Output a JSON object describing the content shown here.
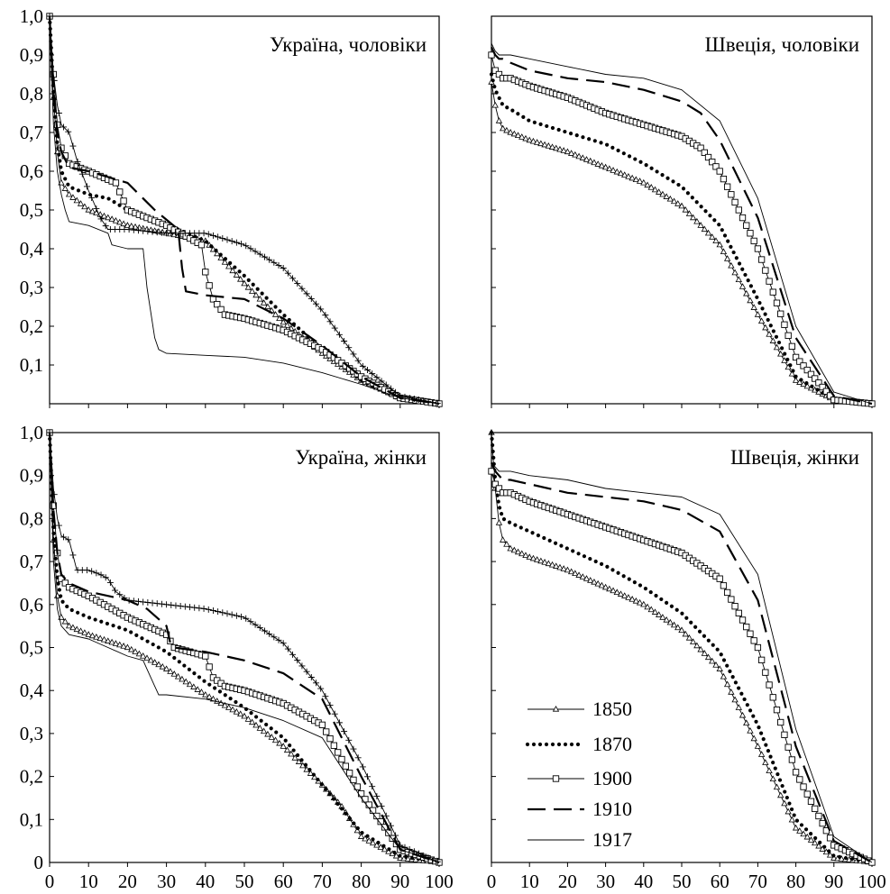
{
  "chart_data": [
    {
      "type": "line",
      "title": "Україна, чоловіки",
      "xlim": [
        0,
        100
      ],
      "ylim": [
        0,
        1
      ],
      "x_ticks": [],
      "y_ticks": [
        "0,1",
        "0,2",
        "0,3",
        "0,4",
        "0,5",
        "0,6",
        "0,7",
        "0,8",
        "0,9",
        "1,0"
      ],
      "y_tick_values": [
        0.1,
        0.2,
        0.3,
        0.4,
        0.5,
        0.6,
        0.7,
        0.8,
        0.9,
        1.0
      ],
      "grid": false,
      "series": [
        {
          "name": "1850",
          "x": [
            0,
            1,
            2,
            3,
            5,
            10,
            15,
            20,
            30,
            40,
            50,
            60,
            70,
            80,
            90,
            100
          ],
          "values": [
            1.0,
            0.79,
            0.65,
            0.57,
            0.54,
            0.5,
            0.48,
            0.46,
            0.44,
            0.42,
            0.31,
            0.21,
            0.13,
            0.06,
            0.015,
            0.0
          ]
        },
        {
          "name": "1870",
          "x": [
            0,
            1,
            2,
            3,
            5,
            10,
            15,
            20,
            30,
            33,
            40,
            50,
            60,
            70,
            80,
            90,
            100
          ],
          "values": [
            1.0,
            0.8,
            0.67,
            0.6,
            0.56,
            0.54,
            0.53,
            0.5,
            0.46,
            0.45,
            0.42,
            0.33,
            0.23,
            0.14,
            0.06,
            0.01,
            0.0
          ]
        },
        {
          "name": "1900",
          "x": [
            0,
            1,
            2,
            3,
            5,
            10,
            17,
            20,
            30,
            39,
            40,
            42,
            45,
            50,
            60,
            70,
            80,
            90,
            100
          ],
          "values": [
            1.0,
            0.85,
            0.72,
            0.66,
            0.62,
            0.6,
            0.57,
            0.5,
            0.46,
            0.41,
            0.34,
            0.27,
            0.23,
            0.22,
            0.19,
            0.14,
            0.07,
            0.015,
            0.0
          ]
        },
        {
          "name": "1910",
          "x": [
            0,
            1,
            2,
            3,
            5,
            10,
            20,
            22,
            27,
            33,
            34,
            35,
            40,
            50,
            60,
            70,
            80,
            90,
            100
          ],
          "values": [
            1.0,
            0.8,
            0.7,
            0.65,
            0.61,
            0.6,
            0.57,
            0.55,
            0.5,
            0.45,
            0.35,
            0.29,
            0.28,
            0.27,
            0.22,
            0.15,
            0.07,
            0.015,
            0.0
          ]
        },
        {
          "name": "1917",
          "x": [
            0,
            1,
            2,
            3,
            4,
            5,
            10,
            15,
            16,
            20,
            24,
            25,
            27,
            28,
            30,
            40,
            50,
            60,
            70,
            80,
            90,
            100
          ],
          "values": [
            1.0,
            0.72,
            0.6,
            0.54,
            0.5,
            0.47,
            0.46,
            0.44,
            0.41,
            0.4,
            0.4,
            0.3,
            0.17,
            0.14,
            0.13,
            0.125,
            0.12,
            0.105,
            0.08,
            0.05,
            0.015,
            0.0
          ]
        },
        {
          "name": "",
          "x": [
            0,
            1,
            2,
            3,
            5,
            7,
            10,
            13,
            15,
            17,
            20,
            30,
            40,
            50,
            60,
            70,
            80,
            90,
            100
          ],
          "values": [
            1.0,
            0.85,
            0.77,
            0.72,
            0.7,
            0.63,
            0.55,
            0.48,
            0.45,
            0.45,
            0.45,
            0.44,
            0.44,
            0.41,
            0.35,
            0.24,
            0.1,
            0.02,
            0.0
          ]
        }
      ]
    },
    {
      "type": "line",
      "title": "Швеція, чоловіки",
      "xlim": [
        0,
        100
      ],
      "ylim": [
        0,
        1
      ],
      "x_ticks": [],
      "y_ticks": [],
      "grid": false,
      "series": [
        {
          "name": "1850",
          "x": [
            0,
            1,
            2,
            3,
            5,
            10,
            20,
            30,
            40,
            50,
            60,
            70,
            80,
            90,
            100
          ],
          "values": [
            0.83,
            0.77,
            0.73,
            0.71,
            0.7,
            0.68,
            0.65,
            0.61,
            0.57,
            0.51,
            0.41,
            0.23,
            0.06,
            0.01,
            0.0
          ]
        },
        {
          "name": "1870",
          "x": [
            0,
            1,
            2,
            3,
            5,
            10,
            20,
            30,
            40,
            50,
            60,
            70,
            80,
            90,
            100
          ],
          "values": [
            0.85,
            0.81,
            0.79,
            0.77,
            0.76,
            0.73,
            0.7,
            0.67,
            0.62,
            0.56,
            0.46,
            0.27,
            0.07,
            0.01,
            0.0
          ]
        },
        {
          "name": "1900",
          "x": [
            0,
            1,
            2,
            3,
            5,
            10,
            20,
            30,
            40,
            50,
            55,
            60,
            70,
            80,
            90,
            100
          ],
          "values": [
            0.9,
            0.86,
            0.85,
            0.84,
            0.84,
            0.82,
            0.79,
            0.75,
            0.72,
            0.69,
            0.66,
            0.6,
            0.4,
            0.12,
            0.01,
            0.0
          ]
        },
        {
          "name": "1910",
          "x": [
            0,
            1,
            2,
            3,
            5,
            10,
            20,
            30,
            40,
            50,
            55,
            60,
            70,
            80,
            90,
            100
          ],
          "values": [
            0.92,
            0.9,
            0.89,
            0.89,
            0.88,
            0.86,
            0.84,
            0.83,
            0.81,
            0.78,
            0.75,
            0.68,
            0.48,
            0.17,
            0.02,
            0.0
          ]
        },
        {
          "name": "1917",
          "x": [
            0,
            1,
            2,
            3,
            5,
            10,
            20,
            30,
            40,
            50,
            60,
            70,
            80,
            90,
            100
          ],
          "values": [
            0.93,
            0.91,
            0.9,
            0.9,
            0.9,
            0.89,
            0.87,
            0.85,
            0.84,
            0.81,
            0.73,
            0.53,
            0.2,
            0.03,
            0.0
          ]
        }
      ]
    },
    {
      "type": "line",
      "title": "Україна, жінки",
      "xlim": [
        0,
        100
      ],
      "ylim": [
        0,
        1
      ],
      "x_ticks": [
        "0",
        "10",
        "20",
        "30",
        "40",
        "50",
        "60",
        "70",
        "80",
        "90",
        "100"
      ],
      "x_tick_values": [
        0,
        10,
        20,
        30,
        40,
        50,
        60,
        70,
        80,
        90,
        100
      ],
      "y_ticks": [
        "0",
        "0,1",
        "0,2",
        "0,3",
        "0,4",
        "0,5",
        "0,6",
        "0,7",
        "0,8",
        "0,9",
        "1,0"
      ],
      "y_tick_values": [
        0,
        0.1,
        0.2,
        0.3,
        0.4,
        0.5,
        0.6,
        0.7,
        0.8,
        0.9,
        1.0
      ],
      "grid": false,
      "series": [
        {
          "name": "1850",
          "x": [
            0,
            1,
            2,
            3,
            5,
            10,
            20,
            30,
            40,
            50,
            60,
            70,
            75,
            80,
            90,
            100
          ],
          "values": [
            1.0,
            0.75,
            0.62,
            0.57,
            0.55,
            0.53,
            0.5,
            0.45,
            0.39,
            0.34,
            0.27,
            0.18,
            0.13,
            0.06,
            0.01,
            0.0
          ]
        },
        {
          "name": "1870",
          "x": [
            0,
            1,
            2,
            3,
            5,
            10,
            20,
            30,
            40,
            50,
            60,
            70,
            80,
            90,
            100
          ],
          "values": [
            1.0,
            0.77,
            0.66,
            0.61,
            0.59,
            0.57,
            0.54,
            0.49,
            0.42,
            0.36,
            0.29,
            0.18,
            0.07,
            0.015,
            0.0
          ]
        },
        {
          "name": "1900",
          "x": [
            0,
            1,
            2,
            3,
            5,
            10,
            20,
            30,
            32,
            40,
            42,
            45,
            50,
            60,
            70,
            80,
            90,
            100
          ],
          "values": [
            1.0,
            0.83,
            0.72,
            0.66,
            0.64,
            0.62,
            0.57,
            0.53,
            0.5,
            0.48,
            0.43,
            0.41,
            0.4,
            0.37,
            0.32,
            0.16,
            0.03,
            0.0
          ]
        },
        {
          "name": "1910",
          "x": [
            0,
            1,
            2,
            3,
            5,
            10,
            20,
            25,
            30,
            31,
            32,
            40,
            50,
            60,
            70,
            80,
            90,
            100
          ],
          "values": [
            1.0,
            0.82,
            0.72,
            0.67,
            0.65,
            0.63,
            0.61,
            0.59,
            0.55,
            0.51,
            0.5,
            0.49,
            0.47,
            0.44,
            0.38,
            0.2,
            0.03,
            0.0
          ]
        },
        {
          "name": "1917",
          "x": [
            0,
            1,
            2,
            3,
            5,
            10,
            15,
            20,
            24,
            25,
            27,
            28,
            30,
            40,
            50,
            60,
            70,
            80,
            90,
            100
          ],
          "values": [
            1.0,
            0.7,
            0.59,
            0.55,
            0.53,
            0.52,
            0.5,
            0.48,
            0.47,
            0.45,
            0.41,
            0.39,
            0.39,
            0.38,
            0.36,
            0.33,
            0.29,
            0.15,
            0.03,
            0.0
          ]
        },
        {
          "name": "",
          "x": [
            0,
            1,
            2,
            3,
            5,
            7,
            10,
            13,
            15,
            17,
            20,
            30,
            40,
            50,
            60,
            70,
            80,
            90,
            100
          ],
          "values": [
            1.0,
            0.87,
            0.8,
            0.76,
            0.75,
            0.68,
            0.68,
            0.67,
            0.66,
            0.63,
            0.61,
            0.6,
            0.59,
            0.57,
            0.51,
            0.4,
            0.23,
            0.04,
            0.0
          ]
        }
      ]
    },
    {
      "type": "line",
      "title": "Швеція, жінки",
      "xlim": [
        0,
        100
      ],
      "ylim": [
        0,
        1
      ],
      "x_ticks": [
        "0",
        "10",
        "20",
        "30",
        "40",
        "50",
        "60",
        "70",
        "80",
        "90",
        "100"
      ],
      "x_tick_values": [
        0,
        10,
        20,
        30,
        40,
        50,
        60,
        70,
        80,
        90,
        100
      ],
      "y_ticks": [],
      "grid": false,
      "legend_position": "bottom-left",
      "series": [
        {
          "name": "1850",
          "x": [
            0,
            1,
            2,
            3,
            5,
            10,
            20,
            30,
            40,
            50,
            60,
            70,
            80,
            90,
            100
          ],
          "values": [
            1.0,
            0.87,
            0.79,
            0.75,
            0.73,
            0.71,
            0.68,
            0.64,
            0.6,
            0.54,
            0.45,
            0.27,
            0.08,
            0.01,
            0.0
          ]
        },
        {
          "name": "1870",
          "x": [
            0,
            1,
            2,
            3,
            5,
            10,
            20,
            30,
            40,
            50,
            60,
            70,
            80,
            90,
            100
          ],
          "values": [
            1.0,
            0.89,
            0.83,
            0.8,
            0.79,
            0.77,
            0.73,
            0.69,
            0.64,
            0.58,
            0.49,
            0.32,
            0.1,
            0.015,
            0.0
          ]
        },
        {
          "name": "1900",
          "x": [
            0,
            1,
            2,
            3,
            5,
            10,
            20,
            30,
            40,
            50,
            60,
            70,
            80,
            90,
            100
          ],
          "values": [
            0.91,
            0.88,
            0.87,
            0.86,
            0.86,
            0.84,
            0.81,
            0.78,
            0.75,
            0.72,
            0.66,
            0.5,
            0.21,
            0.04,
            0.0
          ]
        },
        {
          "name": "1910",
          "x": [
            0,
            1,
            2,
            3,
            5,
            10,
            20,
            30,
            40,
            50,
            60,
            70,
            80,
            90,
            100
          ],
          "values": [
            0.93,
            0.91,
            0.9,
            0.89,
            0.89,
            0.88,
            0.86,
            0.85,
            0.84,
            0.82,
            0.77,
            0.61,
            0.27,
            0.05,
            0.0
          ]
        },
        {
          "name": "1917",
          "x": [
            0,
            1,
            2,
            3,
            5,
            10,
            20,
            30,
            40,
            50,
            60,
            70,
            80,
            90,
            100
          ],
          "values": [
            0.93,
            0.92,
            0.91,
            0.91,
            0.91,
            0.9,
            0.89,
            0.87,
            0.86,
            0.85,
            0.81,
            0.67,
            0.31,
            0.06,
            0.0
          ]
        }
      ]
    }
  ],
  "legend": {
    "entries": [
      {
        "name": "1850",
        "style": "triangle"
      },
      {
        "name": "1870",
        "style": "dotted"
      },
      {
        "name": "1900",
        "style": "square"
      },
      {
        "name": "1910",
        "style": "dashed"
      },
      {
        "name": "1917",
        "style": "thin"
      }
    ]
  },
  "colors": {
    "ink": "#000000",
    "background": "#ffffff"
  }
}
